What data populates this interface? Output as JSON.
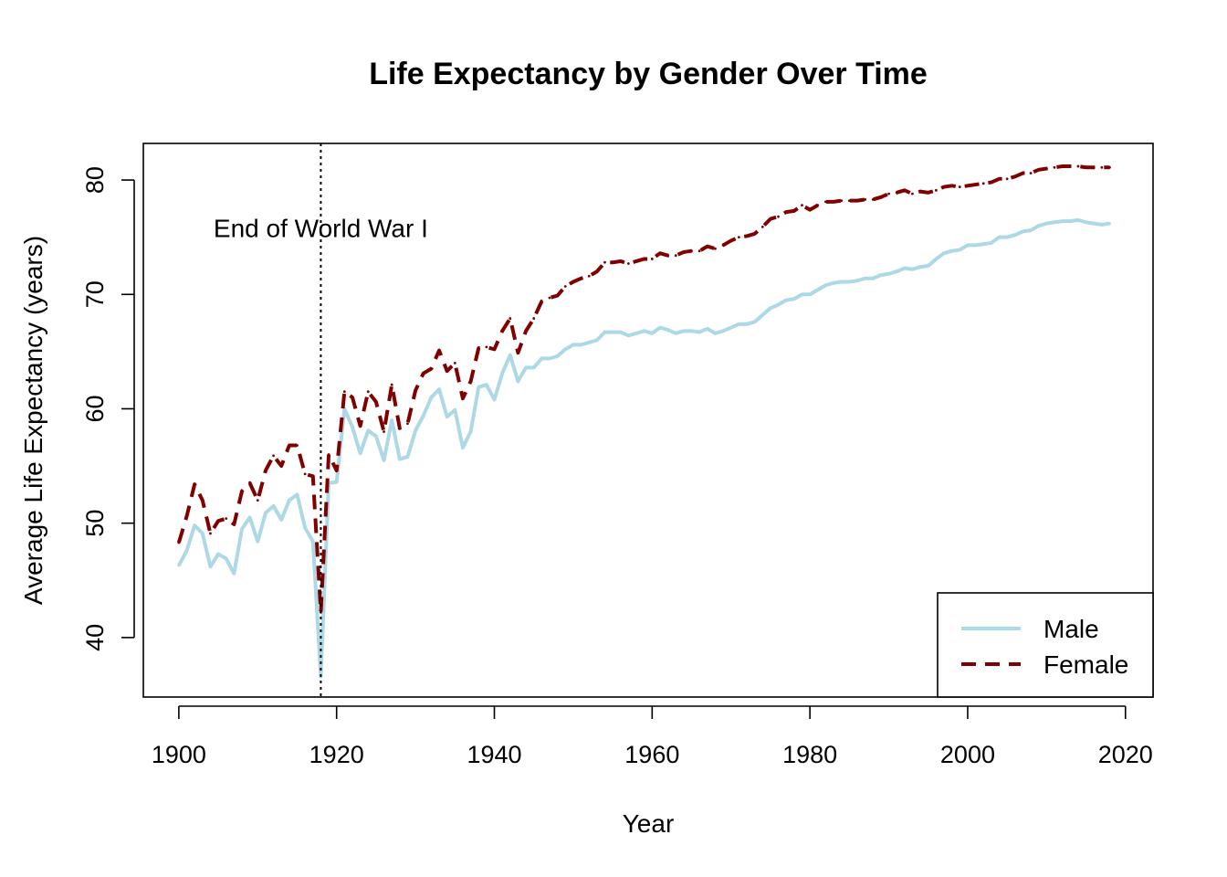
{
  "chart_data": {
    "type": "line",
    "title": "Life Expectancy by Gender Over Time",
    "xlabel": "Year",
    "ylabel": "Average Life Expectancy (years)",
    "xlim": [
      1895.5,
      2023.5
    ],
    "ylim": [
      34.8,
      83.2
    ],
    "xticks": [
      1900,
      1920,
      1940,
      1960,
      1980,
      2000,
      2020
    ],
    "xtick_labels": [
      "1900",
      "1920",
      "1940",
      "1960",
      "1980",
      "2000",
      "2020"
    ],
    "yticks": [
      40,
      50,
      60,
      70,
      80
    ],
    "ytick_labels": [
      "40",
      "50",
      "60",
      "70",
      "80"
    ],
    "grid": false,
    "legend_position": "bottom-right",
    "x": [
      1900,
      1901,
      1902,
      1903,
      1904,
      1905,
      1906,
      1907,
      1908,
      1909,
      1910,
      1911,
      1912,
      1913,
      1914,
      1915,
      1916,
      1917,
      1918,
      1919,
      1920,
      1921,
      1922,
      1923,
      1924,
      1925,
      1926,
      1927,
      1928,
      1929,
      1930,
      1931,
      1932,
      1933,
      1934,
      1935,
      1936,
      1937,
      1938,
      1939,
      1940,
      1941,
      1942,
      1943,
      1944,
      1945,
      1946,
      1947,
      1948,
      1949,
      1950,
      1951,
      1952,
      1953,
      1954,
      1955,
      1956,
      1957,
      1958,
      1959,
      1960,
      1961,
      1962,
      1963,
      1964,
      1965,
      1966,
      1967,
      1968,
      1969,
      1970,
      1971,
      1972,
      1973,
      1974,
      1975,
      1976,
      1977,
      1978,
      1979,
      1980,
      1981,
      1982,
      1983,
      1984,
      1985,
      1986,
      1987,
      1988,
      1989,
      1990,
      1991,
      1992,
      1993,
      1994,
      1995,
      1996,
      1997,
      1998,
      1999,
      2000,
      2001,
      2002,
      2003,
      2004,
      2005,
      2006,
      2007,
      2008,
      2009,
      2010,
      2011,
      2012,
      2013,
      2014,
      2015,
      2016,
      2017,
      2018
    ],
    "series": [
      {
        "name": "Male",
        "color": "#add8e6",
        "line_style": "solid",
        "values": [
          46.3,
          47.6,
          49.8,
          49.1,
          46.2,
          47.3,
          46.9,
          45.6,
          49.5,
          50.5,
          48.4,
          50.9,
          51.5,
          50.3,
          52.0,
          52.5,
          49.6,
          48.4,
          36.6,
          53.5,
          53.6,
          60.0,
          58.4,
          56.1,
          58.1,
          57.6,
          55.5,
          59.0,
          55.6,
          55.8,
          58.1,
          59.4,
          61.0,
          61.7,
          59.3,
          59.9,
          56.6,
          58.0,
          61.9,
          62.1,
          60.8,
          63.1,
          64.7,
          62.4,
          63.6,
          63.6,
          64.4,
          64.4,
          64.6,
          65.2,
          65.6,
          65.6,
          65.8,
          66.0,
          66.7,
          66.7,
          66.7,
          66.4,
          66.6,
          66.8,
          66.6,
          67.1,
          66.9,
          66.6,
          66.8,
          66.8,
          66.7,
          67.0,
          66.6,
          66.8,
          67.1,
          67.4,
          67.4,
          67.6,
          68.2,
          68.8,
          69.1,
          69.5,
          69.6,
          70.0,
          70.0,
          70.4,
          70.8,
          71.0,
          71.1,
          71.1,
          71.2,
          71.4,
          71.4,
          71.7,
          71.8,
          72.0,
          72.3,
          72.2,
          72.4,
          72.5,
          73.1,
          73.6,
          73.8,
          73.9,
          74.3,
          74.3,
          74.4,
          74.5,
          75.0,
          75.0,
          75.2,
          75.5,
          75.6,
          76.0,
          76.2,
          76.3,
          76.4,
          76.4,
          76.5,
          76.3,
          76.2,
          76.1,
          76.2
        ]
      },
      {
        "name": "Female",
        "color": "#800000",
        "line_style": "dashed",
        "values": [
          48.3,
          50.6,
          53.4,
          52.0,
          49.1,
          50.2,
          50.4,
          49.9,
          52.8,
          53.5,
          52.0,
          54.6,
          55.9,
          55.0,
          56.8,
          56.8,
          54.3,
          54.1,
          42.2,
          56.0,
          54.6,
          61.5,
          61.0,
          58.5,
          61.5,
          60.6,
          58.0,
          62.1,
          58.3,
          58.7,
          61.6,
          63.1,
          63.5,
          65.1,
          63.3,
          64.0,
          60.9,
          62.4,
          65.3,
          65.4,
          65.2,
          66.8,
          67.9,
          64.9,
          66.8,
          67.9,
          69.4,
          69.7,
          69.9,
          70.7,
          71.1,
          71.4,
          71.6,
          72.0,
          72.8,
          72.8,
          72.9,
          72.7,
          72.9,
          73.1,
          73.1,
          73.6,
          73.4,
          73.4,
          73.7,
          73.8,
          73.8,
          74.2,
          74.0,
          74.3,
          74.7,
          75.0,
          75.1,
          75.3,
          75.9,
          76.6,
          76.8,
          77.2,
          77.3,
          77.8,
          77.4,
          77.8,
          78.1,
          78.1,
          78.2,
          78.2,
          78.2,
          78.3,
          78.3,
          78.5,
          78.8,
          78.9,
          79.1,
          78.8,
          79.0,
          78.9,
          79.1,
          79.4,
          79.5,
          79.4,
          79.5,
          79.6,
          79.7,
          79.8,
          80.1,
          80.1,
          80.3,
          80.6,
          80.6,
          80.9,
          81.0,
          81.1,
          81.2,
          81.2,
          81.2,
          81.1,
          81.1,
          81.1,
          81.1
        ]
      }
    ],
    "annotations": [
      {
        "type": "vline",
        "x": 1918,
        "line_style": "dotted",
        "color": "#000000"
      },
      {
        "type": "text",
        "text": "End of World War I",
        "x": 1918,
        "y": 75
      }
    ]
  }
}
